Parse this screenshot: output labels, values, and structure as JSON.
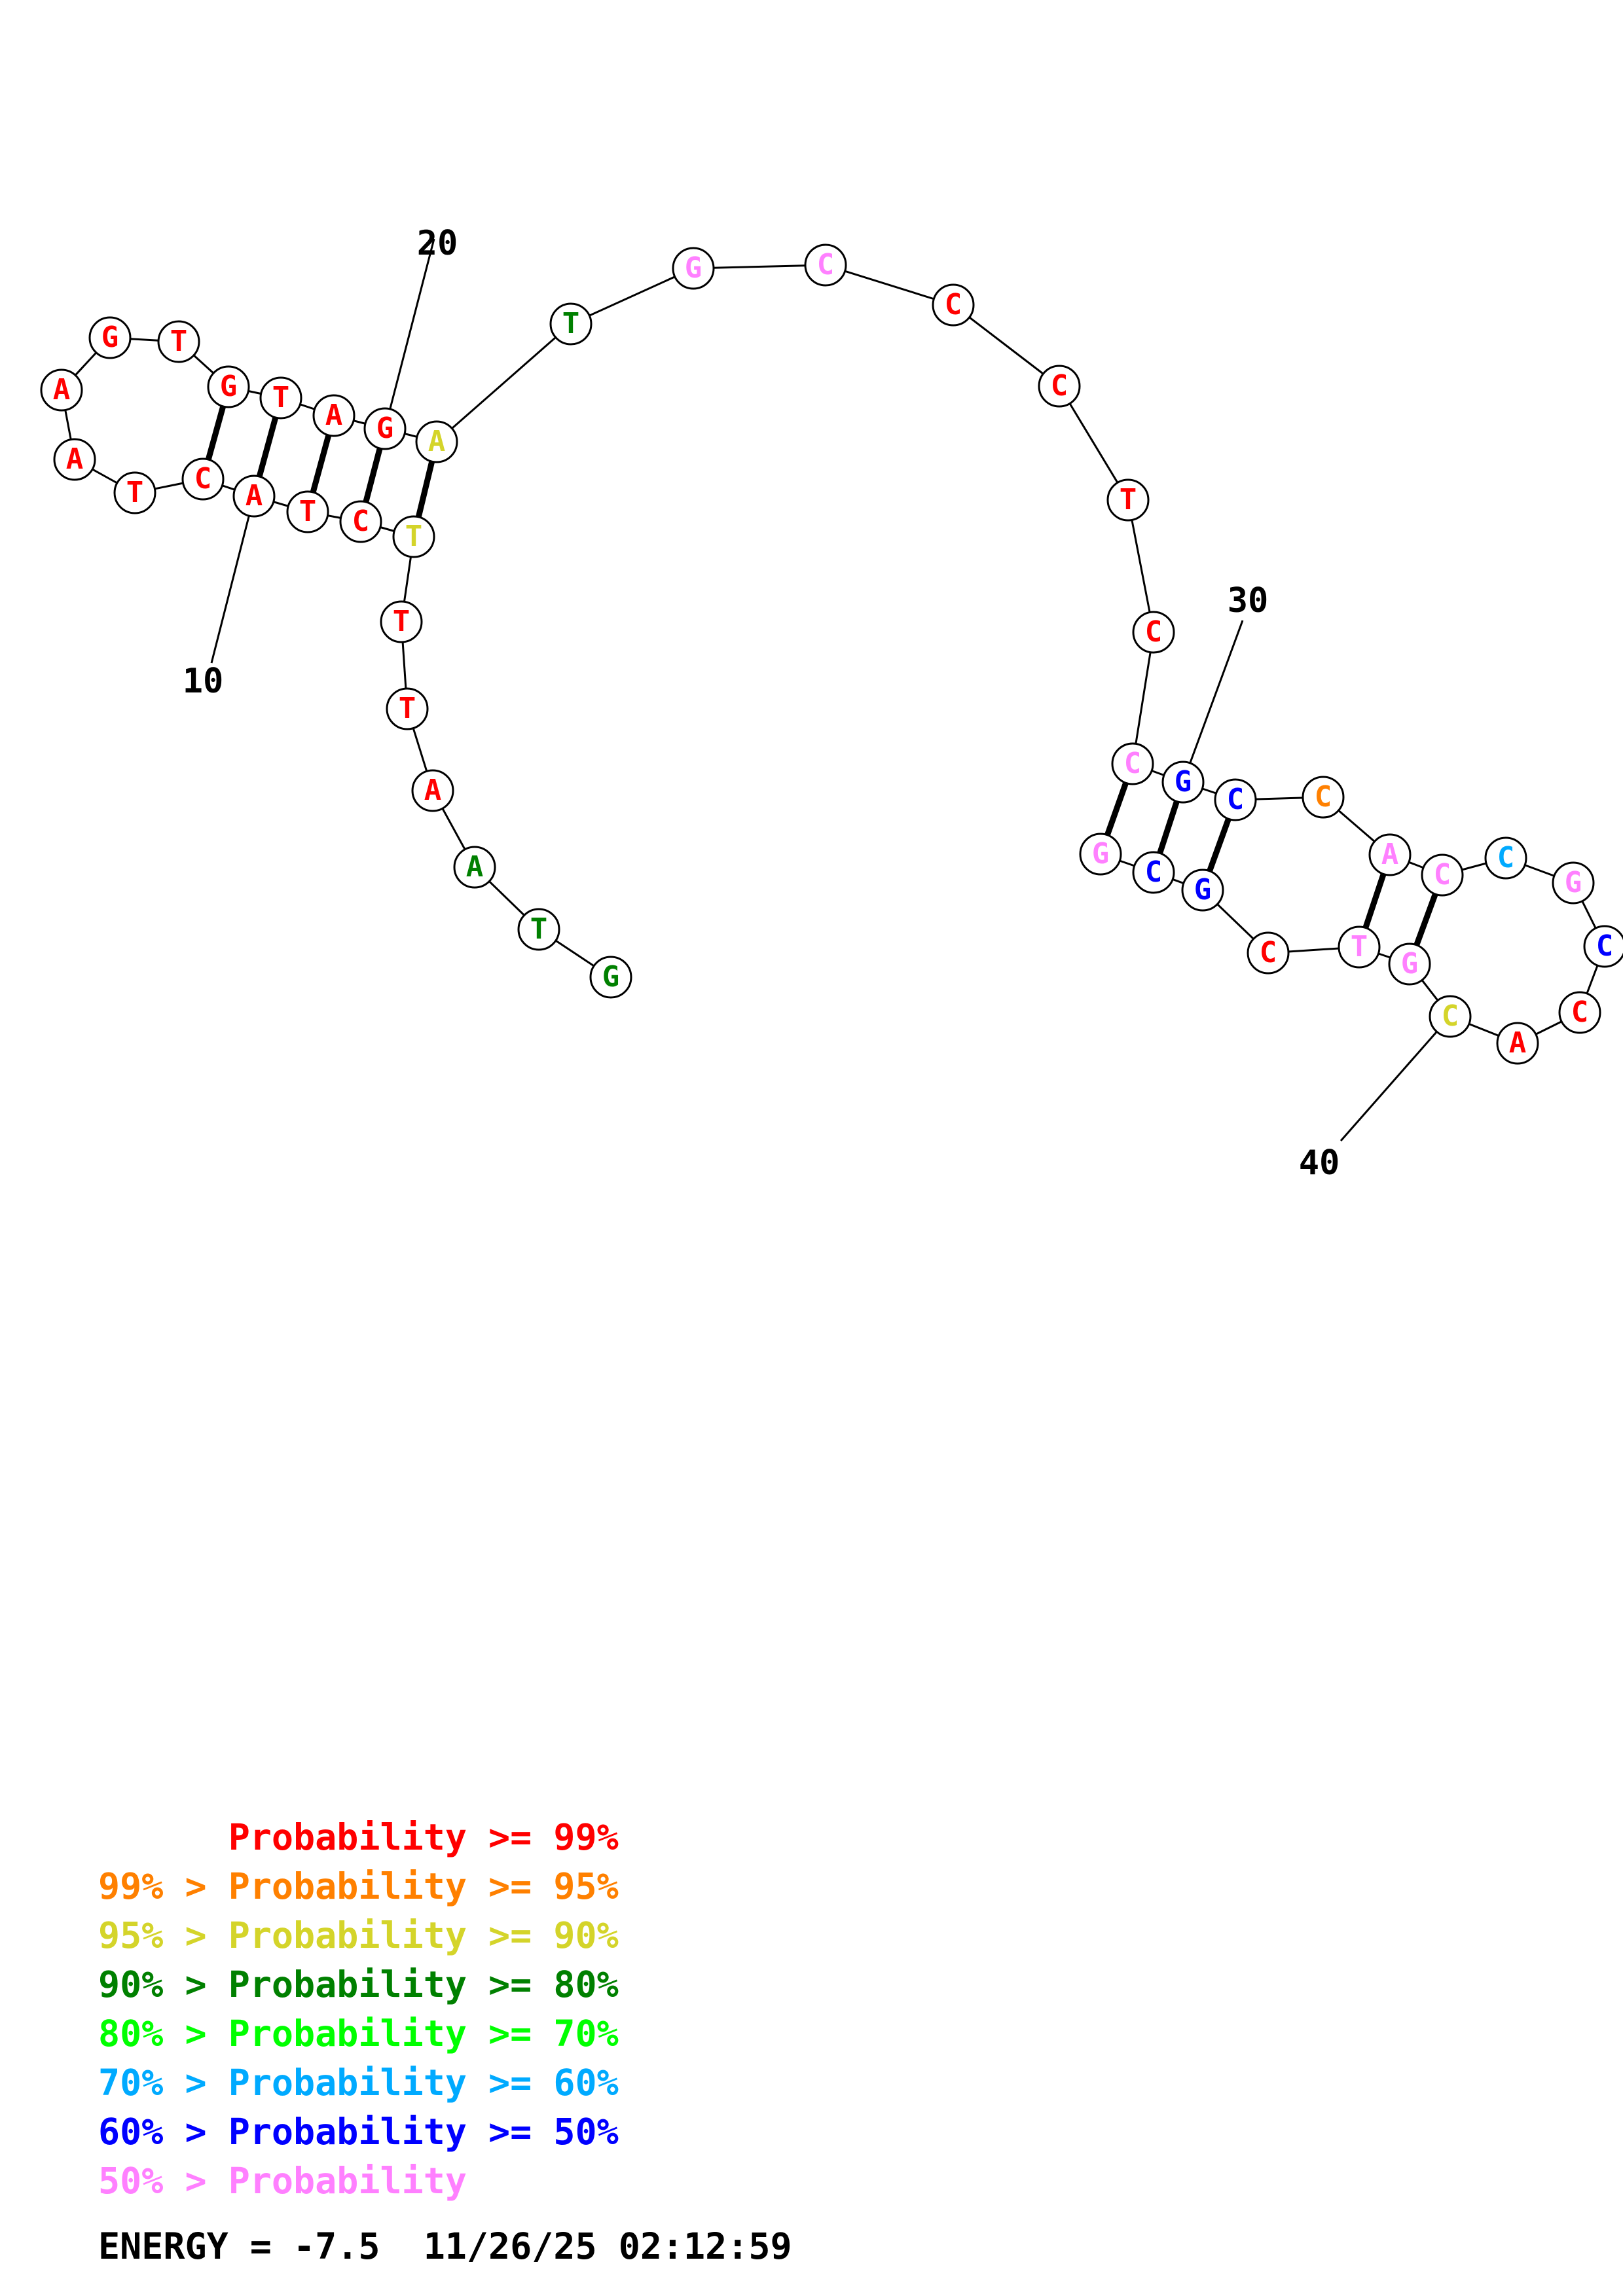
{
  "colors": {
    "p99": "#ff0000",
    "p95": "#ff8000",
    "p90": "#d4d42a",
    "p80": "#008000",
    "p70": "#00ff00",
    "p60": "#00aaff",
    "p50": "#0000ff",
    "plow": "#ff80ff"
  },
  "nucleotides": [
    {
      "n": 1,
      "base": "G",
      "c": "p80"
    },
    {
      "n": 2,
      "base": "T",
      "c": "p80"
    },
    {
      "n": 3,
      "base": "A",
      "c": "p80"
    },
    {
      "n": 4,
      "base": "A",
      "c": "p99"
    },
    {
      "n": 5,
      "base": "T",
      "c": "p99"
    },
    {
      "n": 6,
      "base": "T",
      "c": "p99"
    },
    {
      "n": 7,
      "base": "T",
      "c": "p90"
    },
    {
      "n": 8,
      "base": "C",
      "c": "p99"
    },
    {
      "n": 9,
      "base": "T",
      "c": "p99"
    },
    {
      "n": 10,
      "base": "A",
      "c": "p99"
    },
    {
      "n": 11,
      "base": "C",
      "c": "p99"
    },
    {
      "n": 12,
      "base": "T",
      "c": "p99"
    },
    {
      "n": 13,
      "base": "A",
      "c": "p99"
    },
    {
      "n": 14,
      "base": "A",
      "c": "p99"
    },
    {
      "n": 15,
      "base": "G",
      "c": "p99"
    },
    {
      "n": 16,
      "base": "T",
      "c": "p99"
    },
    {
      "n": 17,
      "base": "G",
      "c": "p99"
    },
    {
      "n": 18,
      "base": "T",
      "c": "p99"
    },
    {
      "n": 19,
      "base": "A",
      "c": "p99"
    },
    {
      "n": 20,
      "base": "G",
      "c": "p99"
    },
    {
      "n": 21,
      "base": "A",
      "c": "p90"
    },
    {
      "n": 22,
      "base": "T",
      "c": "p80"
    },
    {
      "n": 23,
      "base": "G",
      "c": "plow"
    },
    {
      "n": 24,
      "base": "C",
      "c": "plow"
    },
    {
      "n": 25,
      "base": "C",
      "c": "p99"
    },
    {
      "n": 26,
      "base": "C",
      "c": "p99"
    },
    {
      "n": 27,
      "base": "T",
      "c": "p99"
    },
    {
      "n": 28,
      "base": "C",
      "c": "p99"
    },
    {
      "n": 29,
      "base": "C",
      "c": "plow"
    },
    {
      "n": 30,
      "base": "G",
      "c": "p50"
    },
    {
      "n": 31,
      "base": "C",
      "c": "p50"
    },
    {
      "n": 32,
      "base": "C",
      "c": "p95"
    },
    {
      "n": 33,
      "base": "A",
      "c": "plow"
    },
    {
      "n": 34,
      "base": "C",
      "c": "plow"
    },
    {
      "n": 35,
      "base": "C",
      "c": "p60"
    },
    {
      "n": 36,
      "base": "G",
      "c": "plow"
    },
    {
      "n": 37,
      "base": "C",
      "c": "p50"
    },
    {
      "n": 38,
      "base": "C",
      "c": "p99"
    },
    {
      "n": 39,
      "base": "A",
      "c": "p99"
    },
    {
      "n": 40,
      "base": "C",
      "c": "p90"
    },
    {
      "n": 41,
      "base": "G",
      "c": "plow"
    },
    {
      "n": 42,
      "base": "T",
      "c": "plow"
    },
    {
      "n": 43,
      "base": "C",
      "c": "p99"
    },
    {
      "n": 44,
      "base": "G",
      "c": "p50"
    },
    {
      "n": 45,
      "base": "C",
      "c": "p50"
    },
    {
      "n": 46,
      "base": "G",
      "c": "plow"
    }
  ],
  "pairs": [
    [
      7,
      21
    ],
    [
      8,
      20
    ],
    [
      9,
      19
    ],
    [
      10,
      18
    ],
    [
      11,
      17
    ],
    [
      29,
      46
    ],
    [
      30,
      45
    ],
    [
      31,
      44
    ],
    [
      33,
      42
    ],
    [
      34,
      41
    ]
  ],
  "position_labels": [
    {
      "n": 10,
      "text": "10"
    },
    {
      "n": 20,
      "text": "20"
    },
    {
      "n": 30,
      "text": "30"
    },
    {
      "n": 40,
      "text": "40"
    }
  ],
  "legend": [
    {
      "left": "      ",
      "right": "Probability >= 99%",
      "c": "p99"
    },
    {
      "left": "99% > ",
      "right": "Probability >= 95%",
      "c": "p95"
    },
    {
      "left": "95% > ",
      "right": "Probability >= 90%",
      "c": "p90"
    },
    {
      "left": "90% > ",
      "right": "Probability >= 80%",
      "c": "p80"
    },
    {
      "left": "80% > ",
      "right": "Probability >= 70%",
      "c": "p70"
    },
    {
      "left": "70% > ",
      "right": "Probability >= 60%",
      "c": "p60"
    },
    {
      "left": "60% > ",
      "right": "Probability >= 50%",
      "c": "p50"
    },
    {
      "left": "50% > ",
      "right": "Probability",
      "c": "plow"
    }
  ],
  "energy_text": "ENERGY = -7.5  11/26/25 02:12:59"
}
